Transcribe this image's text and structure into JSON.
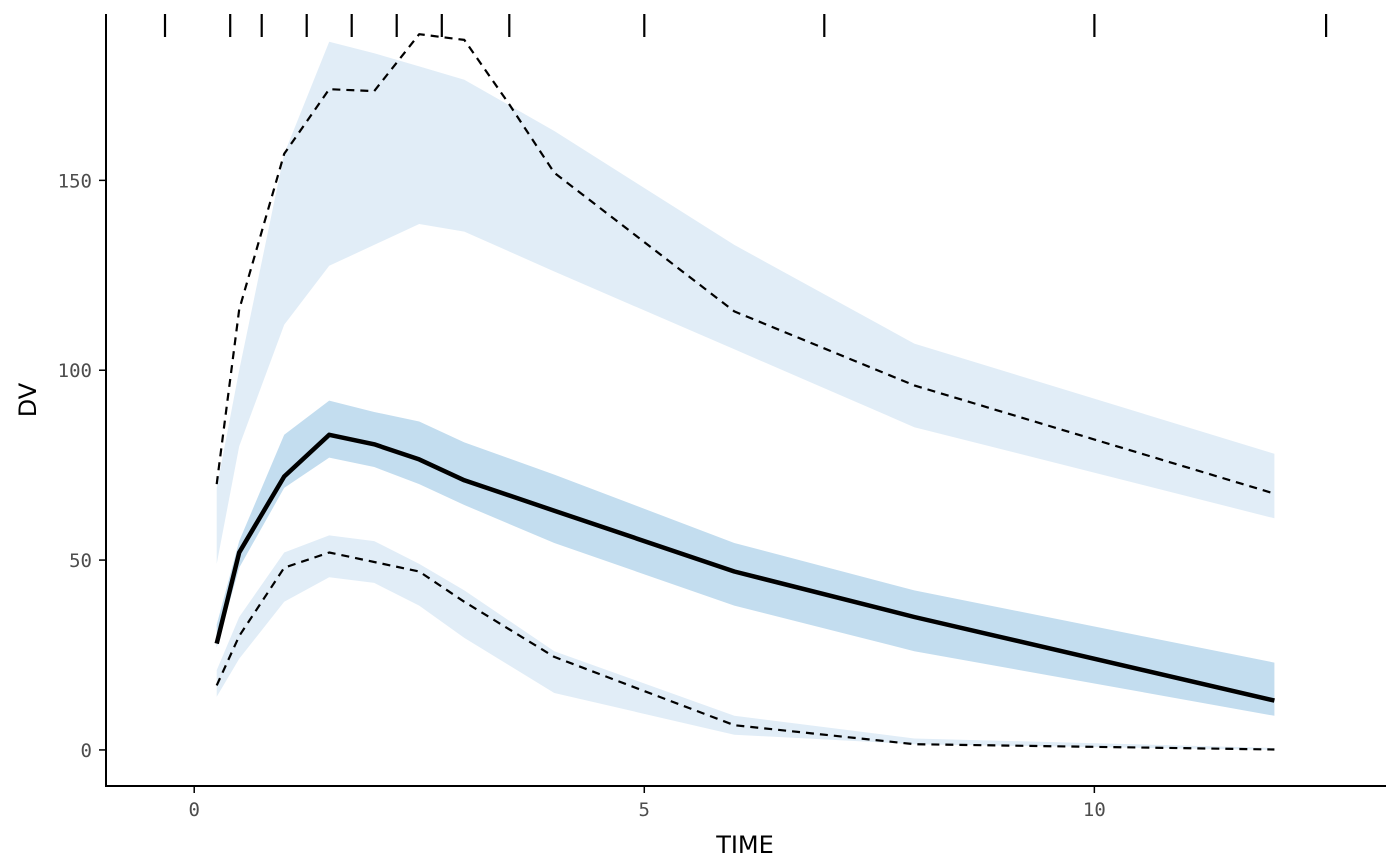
{
  "chart_data": {
    "type": "line",
    "title": "",
    "xlabel": "TIME",
    "ylabel": "DV",
    "xlim": [
      -0.98,
      13.24
    ],
    "ylim": [
      -9.5,
      197.5
    ],
    "x_ticks": [
      0,
      5,
      10
    ],
    "y_ticks": [
      0,
      50,
      100,
      150
    ],
    "grid": false,
    "legend": "none",
    "bin_boundaries": [
      -0.325,
      0.4,
      0.75,
      1.25,
      1.75,
      2.25,
      2.75,
      3.5,
      5,
      7,
      10,
      12.575
    ],
    "colors": {
      "outer_band": "#e1edf7",
      "median_band": "#c3ddef",
      "observed": "#000000"
    },
    "bands": [
      {
        "role": "upper-pi",
        "x": [
          0.25,
          0.5,
          1,
          1.5,
          2,
          2.5,
          3,
          4,
          6,
          8,
          12
        ],
        "lower": [
          49,
          80,
          112,
          127.5,
          133,
          138.5,
          136.5,
          126,
          105.5,
          85,
          61
        ],
        "upper": [
          69,
          100,
          157,
          186.5,
          183.5,
          180,
          176.5,
          163,
          133,
          107,
          78
        ]
      },
      {
        "role": "median-ci",
        "x": [
          0.25,
          0.5,
          1,
          1.5,
          2,
          2.5,
          3,
          4,
          6,
          8,
          12
        ],
        "lower": [
          27,
          48,
          69,
          77,
          74.5,
          70,
          64.5,
          54.5,
          38,
          26,
          9
        ],
        "upper": [
          33,
          55,
          83,
          92,
          89,
          86.5,
          81,
          72.5,
          54.5,
          42,
          23
        ]
      },
      {
        "role": "lower-pi",
        "x": [
          0.25,
          0.5,
          1,
          1.5,
          2,
          2.5,
          3,
          4,
          6,
          8,
          12
        ],
        "lower": [
          14,
          24,
          39,
          45.5,
          44,
          38,
          29.5,
          15,
          4,
          1.5,
          0
        ],
        "upper": [
          21,
          35,
          52,
          56.5,
          55,
          49,
          42,
          26,
          9,
          3,
          0.5
        ]
      }
    ],
    "series": [
      {
        "role": "observed-median",
        "style": "solid",
        "x": [
          0.25,
          0.5,
          1,
          1.5,
          2,
          2.5,
          3,
          4,
          6,
          8,
          12
        ],
        "values": [
          28,
          52,
          72,
          83,
          80.5,
          76.5,
          71,
          63,
          47,
          35,
          13
        ]
      },
      {
        "role": "observed-upper",
        "style": "dashed",
        "x": [
          0.25,
          0.5,
          1,
          1.5,
          2,
          2.5,
          3,
          3.5,
          4,
          6,
          8,
          12
        ],
        "values": [
          70,
          116,
          157,
          174,
          173.5,
          188.5,
          187,
          170,
          152,
          115.5,
          96,
          67.5
        ]
      },
      {
        "role": "observed-lower",
        "style": "dashed",
        "x": [
          0.25,
          0.5,
          1,
          1.5,
          2,
          2.5,
          3,
          4,
          6,
          8,
          12
        ],
        "values": [
          17,
          30,
          48,
          52,
          49.5,
          47,
          39,
          24.5,
          6.5,
          1.5,
          0.1
        ]
      }
    ]
  }
}
